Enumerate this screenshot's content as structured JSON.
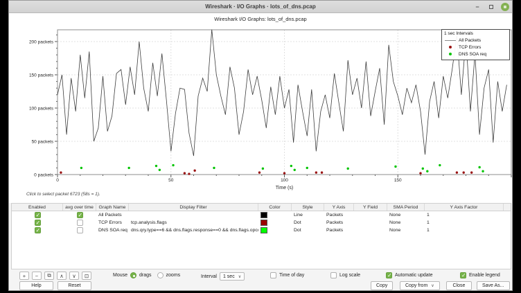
{
  "window": {
    "title": "Wireshark · I/O Graphs · lots_of_dns.pcap",
    "minimize_glyph": "−"
  },
  "chart": {
    "title": "Wireshark I/O Graphs: lots_of_dns.pcap",
    "hint": "Click to select packet 6723 (58s = 1).",
    "legend": {
      "title": "1 sec Intervals",
      "items": [
        {
          "label": "All Packets",
          "type": "line",
          "color": "#8c8c8c"
        },
        {
          "label": "TCP Errors",
          "type": "dot",
          "color": "#9b1313"
        },
        {
          "label": "DNS SOA req",
          "type": "dot",
          "color": "#00c400"
        }
      ]
    }
  },
  "chart_data": {
    "type": "line",
    "title": "Wireshark I/O Graphs: lots_of_dns.pcap",
    "xlabel": "Time (s)",
    "y_unit": "packets",
    "xlim": [
      0,
      200
    ],
    "ylim": [
      0,
      217
    ],
    "x_ticks": [
      0,
      50,
      100,
      150
    ],
    "y_ticks": [
      0,
      50,
      100,
      150,
      200
    ],
    "grid": "dashed",
    "legend_position": "top-right",
    "series": [
      {
        "name": "All Packets",
        "style": "line",
        "color": "#3c3c3c",
        "x_start": 0,
        "x_step": 2,
        "values": [
          120,
          150,
          60,
          145,
          95,
          180,
          115,
          185,
          50,
          70,
          148,
          65,
          88,
          152,
          158,
          105,
          162,
          120,
          200,
          130,
          95,
          168,
          118,
          182,
          112,
          35,
          92,
          130,
          128,
          62,
          28,
          118,
          145,
          125,
          218,
          150,
          118,
          90,
          162,
          130,
          60,
          95,
          158,
          120,
          148,
          112,
          70,
          132,
          90,
          148,
          100,
          128,
          48,
          135,
          95,
          58,
          128,
          35,
          95,
          120,
          85,
          152,
          108,
          65,
          172,
          120,
          145,
          100,
          170,
          88,
          125,
          160,
          75,
          195,
          140,
          118,
          90,
          130,
          108,
          135,
          95,
          30,
          110,
          140,
          85,
          148,
          115,
          160,
          210,
          120,
          205,
          95,
          182,
          60,
          130,
          158,
          48,
          140,
          95,
          135
        ]
      },
      {
        "name": "TCP Errors",
        "style": "dot",
        "color": "#9b1313",
        "points": [
          [
            1.5,
            3
          ],
          [
            56,
            2
          ],
          [
            58,
            1
          ],
          [
            60.5,
            6
          ],
          [
            89,
            3
          ],
          [
            100,
            2
          ],
          [
            114,
            3
          ],
          [
            116.5,
            3
          ],
          [
            160,
            2
          ],
          [
            176,
            3
          ],
          [
            179,
            3
          ],
          [
            182.5,
            3
          ]
        ]
      },
      {
        "name": "DNS SOA req",
        "style": "dot",
        "color": "#00c400",
        "points": [
          [
            10.5,
            10
          ],
          [
            31.5,
            10
          ],
          [
            43.5,
            13
          ],
          [
            45,
            7
          ],
          [
            51,
            14
          ],
          [
            69,
            10
          ],
          [
            90.5,
            9
          ],
          [
            103,
            13
          ],
          [
            104.5,
            7
          ],
          [
            110,
            10
          ],
          [
            128,
            9
          ],
          [
            149,
            12
          ],
          [
            161,
            9
          ],
          [
            163,
            5
          ],
          [
            168.5,
            14
          ],
          [
            186,
            11
          ],
          [
            187.5,
            5
          ]
        ]
      }
    ]
  },
  "table": {
    "headers": [
      "Enabled",
      "avg over time",
      "Graph Name",
      "Display Filter",
      "Color",
      "Style",
      "Y Axis",
      "Y Field",
      "SMA Period",
      "Y Axis Factor"
    ],
    "rows": [
      {
        "enabled": true,
        "avg": true,
        "name": "All Packets",
        "filter": "",
        "color": "#000000",
        "style": "Line",
        "y_axis": "Packets",
        "y_field": "",
        "sma": "None",
        "factor": "1"
      },
      {
        "enabled": true,
        "avg": false,
        "name": "TCP Errors",
        "filter": "tcp.analysis.flags",
        "color": "#9b0000",
        "style": "Dot",
        "y_axis": "Packets",
        "y_field": "",
        "sma": "None",
        "factor": "1"
      },
      {
        "enabled": true,
        "avg": false,
        "name": "DNS SOA req",
        "filter": "dns.qry.type==6 && dns.flags.response==0 && dns.flags.opcode==0",
        "color": "#00ff00",
        "style": "Dot",
        "y_axis": "Packets",
        "y_field": "",
        "sma": "None",
        "factor": "1"
      }
    ]
  },
  "controls": {
    "toolbar": {
      "add": "+",
      "remove": "−",
      "duplicate": "⧉",
      "move_up": "∧",
      "move_down": "∨",
      "clear": "⊡"
    },
    "mouse": {
      "label": "Mouse",
      "options": [
        {
          "label": "drags",
          "selected": true
        },
        {
          "label": "zooms",
          "selected": false
        }
      ]
    },
    "interval": {
      "label": "Interval",
      "value": "1 sec"
    },
    "checkboxes": [
      {
        "label": "Time of day",
        "checked": false
      },
      {
        "label": "Log scale",
        "checked": false
      },
      {
        "label": "Automatic update",
        "checked": true
      },
      {
        "label": "Enable legend",
        "checked": true
      }
    ]
  },
  "buttons": {
    "help": "Help",
    "reset": "Reset",
    "copy": "Copy",
    "copy_from": "Copy from",
    "close": "Close",
    "save_as": "Save As..."
  }
}
